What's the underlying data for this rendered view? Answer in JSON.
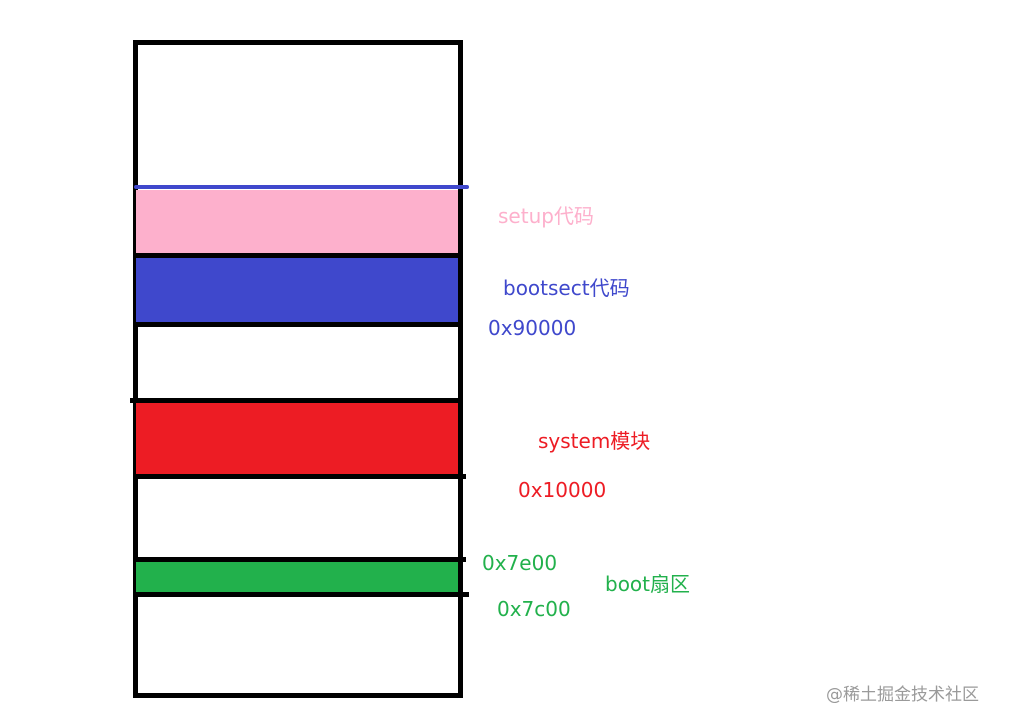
{
  "colors": {
    "setup": "#fdb0cc",
    "bootsect": "#3f48cc",
    "system": "#ed1c24",
    "boot": "#22b14c",
    "outline": "#000000"
  },
  "labels": {
    "setup": "setup代码",
    "bootsect": "bootsect代码",
    "addr_90000": "0x90000",
    "system": "system模块",
    "addr_10000": "0x10000",
    "addr_7e00": "0x7e00",
    "boot": "boot扇区",
    "addr_7c00": "0x7c00"
  },
  "watermark": "@稀土掘金技术社区"
}
